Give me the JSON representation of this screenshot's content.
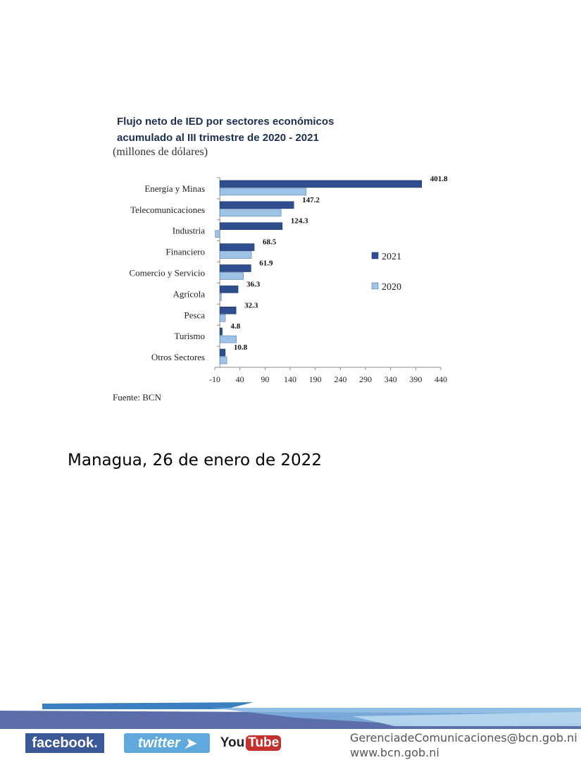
{
  "chart_data": {
    "type": "bar",
    "orientation": "horizontal",
    "title_line1": "Flujo neto de IED por sectores económicos",
    "title_line2": "acumulado al III trimestre de 2020 - 2021",
    "subtitle": "(millones de dólares)",
    "categories": [
      "Energía y Minas",
      "Telecomunicaciones",
      "Industria",
      "Financiero",
      "Comercio y Servicio",
      "Agrícola",
      "Pesca",
      "Turismo",
      "Otros Sectores"
    ],
    "series": [
      {
        "name": "2021",
        "color": "#2e4e8f",
        "values": [
          401.8,
          147.2,
          124.3,
          68.5,
          61.9,
          36.3,
          32.3,
          4.8,
          10.8
        ],
        "labels": [
          "401.8",
          "147.2",
          "124.3",
          "68.5",
          "61.9",
          "36.3",
          "32.3",
          "4.8",
          "10.8"
        ]
      },
      {
        "name": "2020",
        "color": "#9dc3e6",
        "values": [
          172,
          122,
          -9,
          63,
          47,
          3,
          11,
          33,
          14
        ]
      }
    ],
    "xlim": [
      -10,
      440
    ],
    "xticks": [
      "-10",
      "40",
      "90",
      "140",
      "190",
      "240",
      "290",
      "340",
      "390",
      "440"
    ],
    "legend": "right",
    "grid": false,
    "source": "Fuente: BCN"
  },
  "dateline": "Managua, 26 de enero de 2022",
  "footer": {
    "facebook": "facebook.",
    "twitter": "twitter",
    "youtube_you": "You",
    "youtube_tube": "Tube",
    "email": "GerenciadeComunicaciones@bcn.gob.ni",
    "website": "www.bcn.gob.ni"
  }
}
